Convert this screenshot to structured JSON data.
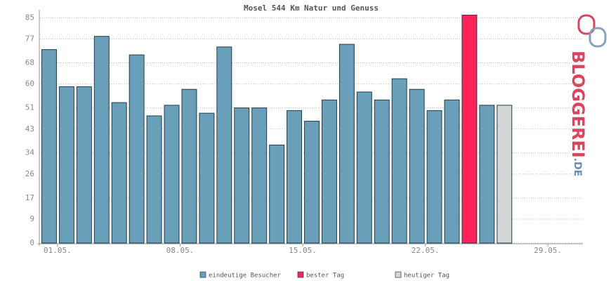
{
  "chart_data": {
    "type": "bar",
    "title": "Mosel 544 Km Natur und Genuss",
    "categories": [
      "01.05.",
      null,
      null,
      null,
      null,
      null,
      null,
      "08.05.",
      null,
      null,
      null,
      null,
      null,
      null,
      "15.05.",
      null,
      null,
      null,
      null,
      null,
      null,
      "22.05.",
      null,
      null,
      null,
      null,
      null,
      null,
      "29.05.",
      null,
      null
    ],
    "series": [
      {
        "name": "eindeutige Besucher",
        "color": "#6a9fb9",
        "values": [
          73,
          59,
          59,
          78,
          53,
          71,
          48,
          52,
          58,
          49,
          74,
          51,
          51,
          37,
          50,
          46,
          54,
          75,
          57,
          54,
          62,
          58,
          50,
          54,
          null,
          52,
          null,
          null,
          null,
          null,
          null
        ]
      },
      {
        "name": "bester Tag",
        "color": "#ff2358",
        "values": [
          null,
          null,
          null,
          null,
          null,
          null,
          null,
          null,
          null,
          null,
          null,
          null,
          null,
          null,
          null,
          null,
          null,
          null,
          null,
          null,
          null,
          null,
          null,
          null,
          86,
          null,
          null,
          null,
          null,
          null,
          null
        ]
      },
      {
        "name": "heutiger Tag",
        "color": "#d6d6d6",
        "values": [
          null,
          null,
          null,
          null,
          null,
          null,
          null,
          null,
          null,
          null,
          null,
          null,
          null,
          null,
          null,
          null,
          null,
          null,
          null,
          null,
          null,
          null,
          null,
          null,
          null,
          null,
          52,
          null,
          null,
          null,
          null
        ]
      }
    ],
    "ylim": [
      0,
      88
    ],
    "yticks": [
      0,
      9,
      17,
      26,
      34,
      43,
      51,
      60,
      68,
      77,
      85
    ],
    "grid": true
  },
  "logo": {
    "text": "BLOGGEREI",
    "suffix": ".DE"
  }
}
